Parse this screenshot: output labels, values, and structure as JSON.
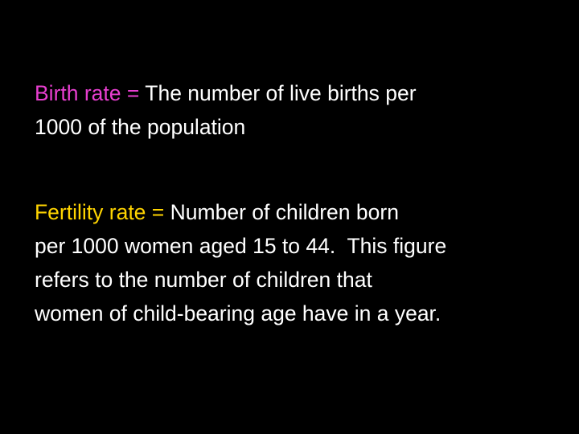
{
  "definitions": [
    {
      "term": "Birth rate",
      "sep": "=",
      "color": "#e83fd0",
      "lines": [
        "The number of live births per",
        "1000 of the population"
      ]
    },
    {
      "term": "Fertility rate",
      "sep": "=",
      "color": "#ffd400",
      "lines": [
        "Number of children born",
        "per 1000 women aged 15 to 44.  This figure",
        "refers to the number of children that",
        "women of child-bearing age have in a year."
      ]
    }
  ]
}
